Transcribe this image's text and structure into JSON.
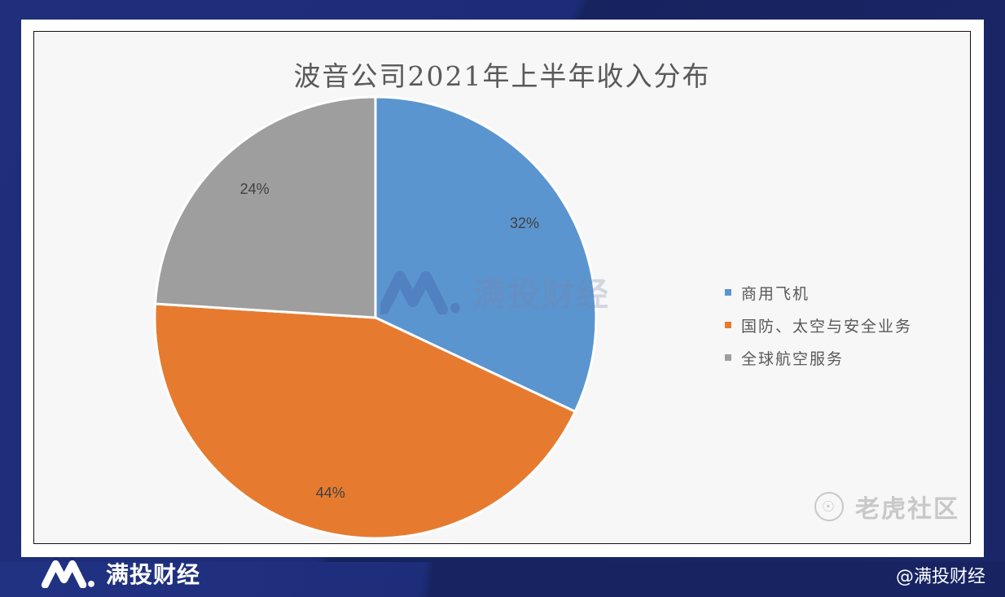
{
  "chart_data": {
    "type": "pie",
    "title": "波音公司2021年上半年收入分布",
    "categories": [
      "商用飞机",
      "国防、太空与安全业务",
      "全球航空服务"
    ],
    "values": [
      32,
      44,
      24
    ],
    "labels": [
      "32%",
      "44%",
      "24%"
    ],
    "colors": [
      "#5b95cf",
      "#e67b30",
      "#9e9e9e"
    ],
    "start_angle_deg": 0,
    "direction": "clockwise",
    "legend_position": "right"
  },
  "legend": {
    "items": [
      {
        "label": "商用飞机",
        "color": "#5b95cf"
      },
      {
        "label": "国防、太空与安全业务",
        "color": "#e67b30"
      },
      {
        "label": "全球航空服务",
        "color": "#9e9e9e"
      }
    ]
  },
  "watermarks": {
    "center": "满投财经",
    "tiger": "老虎社区"
  },
  "footer": {
    "brand": "满投财经",
    "handle": "@满投财经"
  },
  "colors": {
    "background": "#1d2c78",
    "plot_bg": "#f7f7f7"
  }
}
